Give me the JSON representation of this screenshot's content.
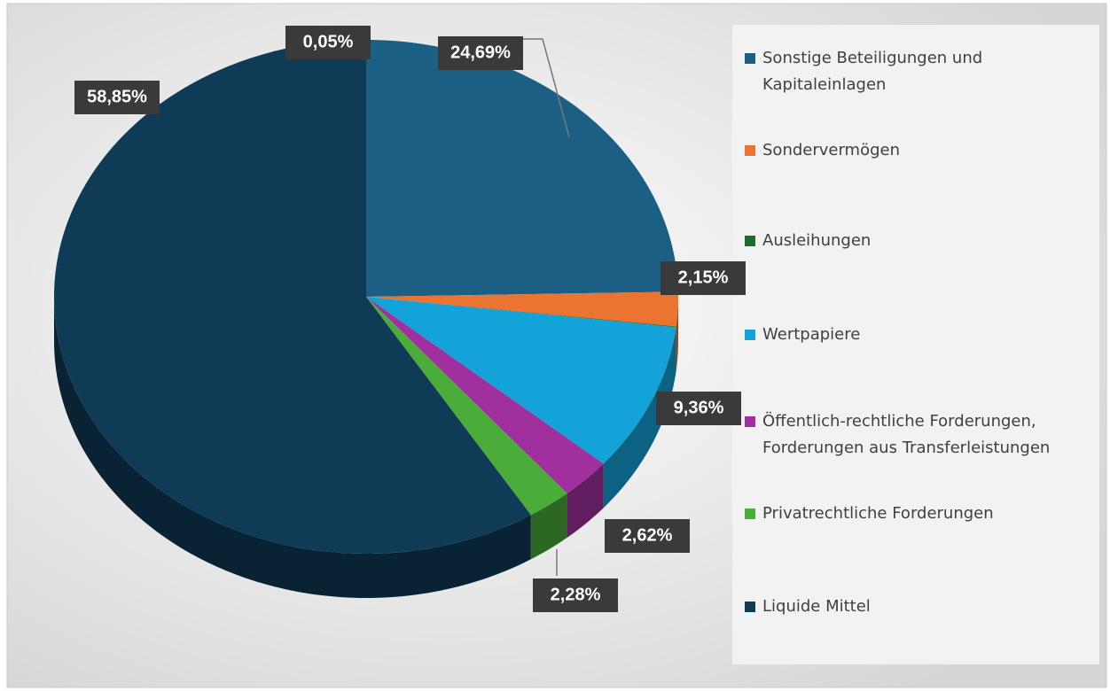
{
  "chart_data": {
    "type": "pie",
    "categories": [
      "Sonstige Beteiligungen und Kapitaleinlagen",
      "Sondervermögen",
      "Ausleihungen",
      "Wertpapiere",
      "Öffentlich-rechtliche Forderungen, Forderungen aus Transferleistungen",
      "Privatrechtliche Forderungen",
      "Liquide Mittel"
    ],
    "values": [
      24.69,
      2.15,
      0.05,
      9.36,
      2.62,
      2.28,
      58.85
    ],
    "value_labels": [
      "24,69%",
      "2,15%",
      "0,05%",
      "9,36%",
      "2,62%",
      "2,28%",
      "58,85%"
    ],
    "colors": [
      "#1b5f84",
      "#ec7432",
      "#1e6b2a",
      "#14a3d8",
      "#a0309e",
      "#4aad3a",
      "#0f3b57"
    ],
    "legend": "right"
  }
}
